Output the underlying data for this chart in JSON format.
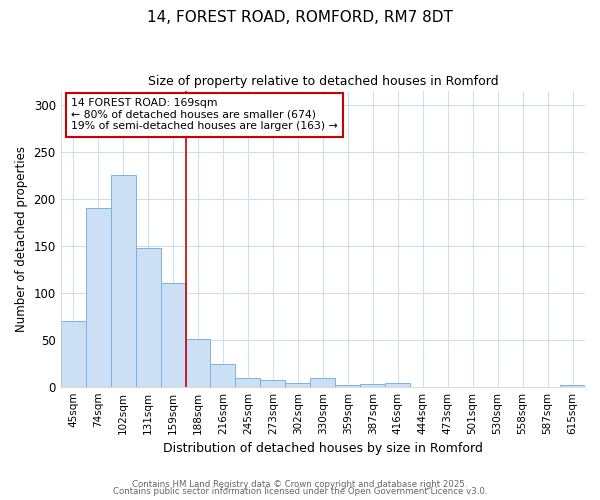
{
  "title1": "14, FOREST ROAD, ROMFORD, RM7 8DT",
  "title2": "Size of property relative to detached houses in Romford",
  "xlabel": "Distribution of detached houses by size in Romford",
  "ylabel": "Number of detached properties",
  "categories": [
    "45sqm",
    "74sqm",
    "102sqm",
    "131sqm",
    "159sqm",
    "188sqm",
    "216sqm",
    "245sqm",
    "273sqm",
    "302sqm",
    "330sqm",
    "359sqm",
    "387sqm",
    "416sqm",
    "444sqm",
    "473sqm",
    "501sqm",
    "530sqm",
    "558sqm",
    "587sqm",
    "615sqm"
  ],
  "values": [
    70,
    190,
    225,
    147,
    110,
    51,
    24,
    9,
    7,
    4,
    9,
    2,
    3,
    4,
    0,
    0,
    0,
    0,
    0,
    0,
    2
  ],
  "bar_color": "#cce0f5",
  "bar_edge_color": "#7ab3e0",
  "background_color": "#ffffff",
  "grid_color": "#d0dff0",
  "red_line_x": 4.5,
  "annotation_text": "14 FOREST ROAD: 169sqm\n← 80% of detached houses are smaller (674)\n19% of semi-detached houses are larger (163) →",
  "annotation_box_color": "#ffffff",
  "annotation_box_edge": "#cc0000",
  "annotation_text_color": "#000000",
  "red_line_color": "#cc0000",
  "footer1": "Contains HM Land Registry data © Crown copyright and database right 2025.",
  "footer2": "Contains public sector information licensed under the Open Government Licence v3.0.",
  "ylim": [
    0,
    315
  ],
  "yticks": [
    0,
    50,
    100,
    150,
    200,
    250,
    300
  ]
}
